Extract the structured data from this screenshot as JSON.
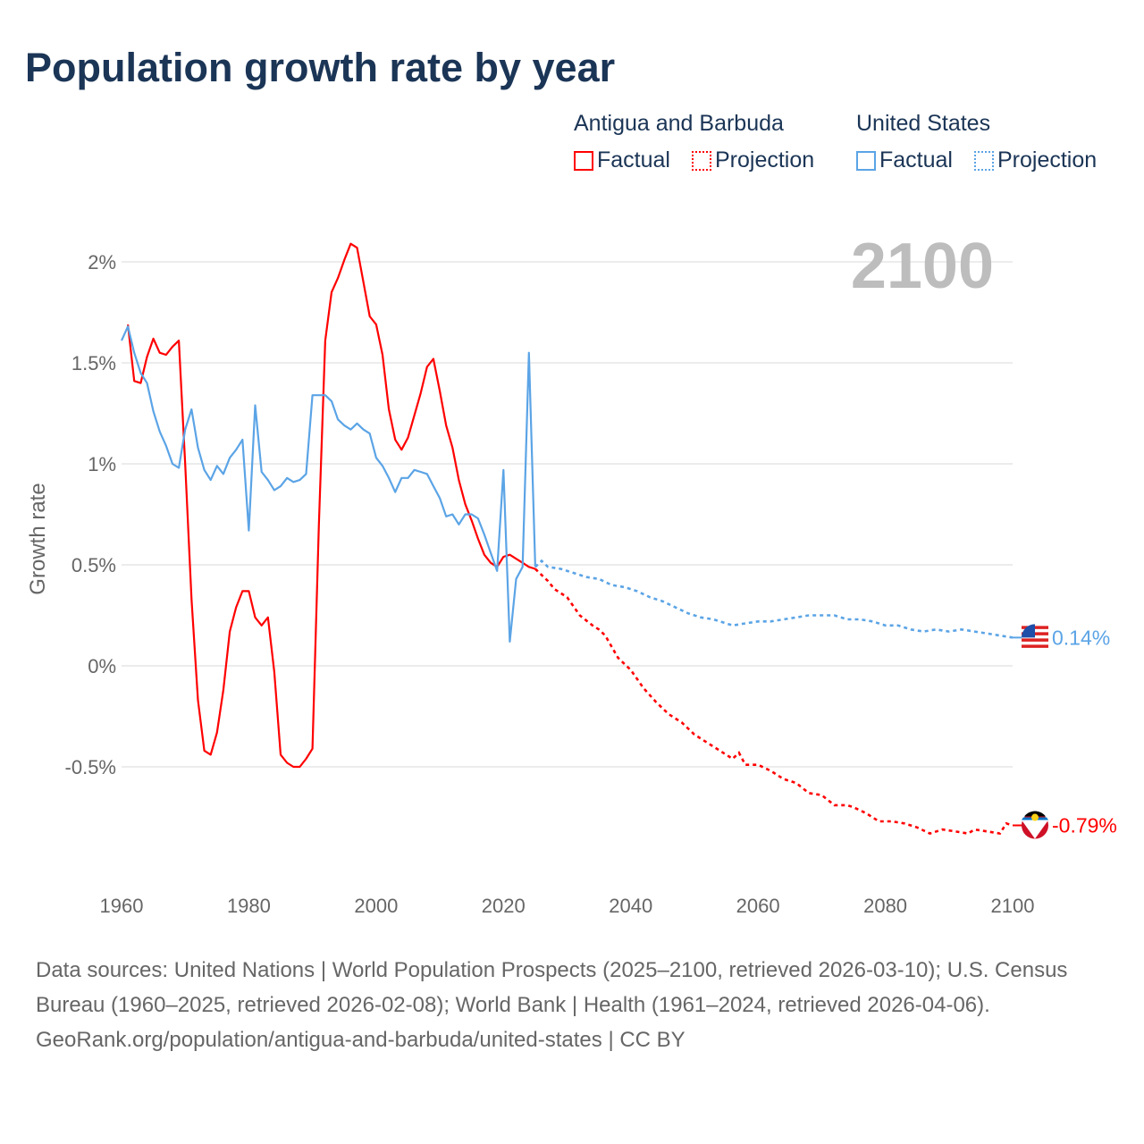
{
  "title": "Population growth rate by year",
  "legend": {
    "groups": [
      {
        "name": "Antigua and Barbuda",
        "color": "#ff0000",
        "factual": "Factual",
        "projection": "Projection"
      },
      {
        "name": "United States",
        "color": "#5ba4e6",
        "factual": "Factual",
        "projection": "Projection"
      }
    ]
  },
  "footer": {
    "sources": "Data sources: United Nations | World Population Prospects (2025–2100, retrieved 2026-03-10); U.S. Census Bureau (1960–2025, retrieved 2026-02-08); World Bank | Health (1961–2024, retrieved 2026-04-06).",
    "credit": "GeoRank.org/population/antigua-and-barbuda/united-states | CC BY"
  },
  "chart_data": {
    "type": "line",
    "year_label": "2100",
    "ylabel": "Growth rate",
    "xlim": [
      1960,
      2100
    ],
    "ylim": [
      -0.95,
      2.25
    ],
    "xticks": [
      1960,
      1980,
      2000,
      2020,
      2040,
      2060,
      2080,
      2100
    ],
    "yticks": [
      {
        "v": 2,
        "label": "2%"
      },
      {
        "v": 1.5,
        "label": "1.5%"
      },
      {
        "v": 1,
        "label": "1%"
      },
      {
        "v": 0.5,
        "label": "0.5%"
      },
      {
        "v": 0,
        "label": "0%"
      },
      {
        "v": -0.5,
        "label": "-0.5%"
      }
    ],
    "grid": true,
    "series": [
      {
        "name": "Antigua and Barbuda",
        "color": "#ff0000",
        "end_label": "-0.79%",
        "flag": "antigua-flag",
        "factual": {
          "x": [
            1961,
            1962,
            1963,
            1964,
            1965,
            1966,
            1967,
            1968,
            1969,
            1970,
            1971,
            1972,
            1973,
            1974,
            1975,
            1976,
            1977,
            1978,
            1979,
            1980,
            1981,
            1982,
            1983,
            1984,
            1985,
            1986,
            1987,
            1988,
            1989,
            1990,
            1991,
            1992,
            1993,
            1994,
            1995,
            1996,
            1997,
            1998,
            1999,
            2000,
            2001,
            2002,
            2003,
            2004,
            2005,
            2006,
            2007,
            2008,
            2009,
            2010,
            2011,
            2012,
            2013,
            2014,
            2015,
            2016,
            2017,
            2018,
            2019,
            2020,
            2021,
            2022,
            2023,
            2024,
            2025
          ],
          "y": [
            1.69,
            1.41,
            1.4,
            1.53,
            1.62,
            1.55,
            1.54,
            1.58,
            1.61,
            1.0,
            0.33,
            -0.17,
            -0.42,
            -0.44,
            -0.33,
            -0.12,
            0.17,
            0.29,
            0.37,
            0.37,
            0.24,
            0.2,
            0.24,
            -0.03,
            -0.44,
            -0.48,
            -0.5,
            -0.5,
            -0.46,
            -0.41,
            0.7,
            1.61,
            1.85,
            1.92,
            2.01,
            2.09,
            2.07,
            1.9,
            1.73,
            1.69,
            1.54,
            1.27,
            1.12,
            1.07,
            1.13,
            1.24,
            1.35,
            1.48,
            1.52,
            1.36,
            1.19,
            1.08,
            0.92,
            0.8,
            0.72,
            0.63,
            0.55,
            0.51,
            0.49,
            0.54,
            0.55,
            0.53,
            0.51,
            0.49,
            0.48
          ]
        },
        "projection": {
          "x": [
            2025,
            2027,
            2028,
            2030,
            2032,
            2034,
            2035,
            2036,
            2038,
            2040,
            2042,
            2044,
            2046,
            2048,
            2050,
            2052,
            2054,
            2056,
            2057,
            2058,
            2060,
            2062,
            2064,
            2066,
            2068,
            2070,
            2072,
            2074,
            2075,
            2077,
            2079,
            2081,
            2083,
            2085,
            2087,
            2089,
            2091,
            2093,
            2094,
            2096,
            2098,
            2099,
            2100
          ],
          "y": [
            0.48,
            0.42,
            0.38,
            0.34,
            0.25,
            0.2,
            0.18,
            0.15,
            0.04,
            -0.02,
            -0.11,
            -0.18,
            -0.24,
            -0.28,
            -0.34,
            -0.38,
            -0.42,
            -0.46,
            -0.43,
            -0.49,
            -0.49,
            -0.52,
            -0.56,
            -0.58,
            -0.63,
            -0.64,
            -0.69,
            -0.69,
            -0.7,
            -0.73,
            -0.77,
            -0.77,
            -0.78,
            -0.8,
            -0.83,
            -0.81,
            -0.82,
            -0.83,
            -0.81,
            -0.82,
            -0.83,
            -0.78,
            -0.79
          ]
        }
      },
      {
        "name": "United States",
        "color": "#5ba4e6",
        "end_label": "0.14%",
        "flag": "us-flag",
        "factual": {
          "x": [
            1960,
            1961,
            1962,
            1963,
            1964,
            1965,
            1966,
            1967,
            1968,
            1969,
            1970,
            1971,
            1972,
            1973,
            1974,
            1975,
            1976,
            1977,
            1978,
            1979,
            1980,
            1981,
            1982,
            1983,
            1984,
            1985,
            1986,
            1987,
            1988,
            1989,
            1990,
            1991,
            1992,
            1993,
            1994,
            1995,
            1996,
            1997,
            1998,
            1999,
            2000,
            2001,
            2002,
            2003,
            2004,
            2005,
            2006,
            2007,
            2008,
            2009,
            2010,
            2011,
            2012,
            2013,
            2014,
            2015,
            2016,
            2017,
            2018,
            2019,
            2020,
            2021,
            2022,
            2023,
            2024,
            2025
          ],
          "y": [
            1.61,
            1.68,
            1.55,
            1.45,
            1.4,
            1.26,
            1.16,
            1.09,
            1.0,
            0.98,
            1.17,
            1.27,
            1.08,
            0.97,
            0.92,
            0.99,
            0.95,
            1.03,
            1.07,
            1.12,
            0.67,
            1.29,
            0.96,
            0.92,
            0.87,
            0.89,
            0.93,
            0.91,
            0.92,
            0.95,
            1.34,
            1.34,
            1.34,
            1.31,
            1.22,
            1.19,
            1.17,
            1.2,
            1.17,
            1.15,
            1.03,
            0.99,
            0.93,
            0.86,
            0.93,
            0.93,
            0.97,
            0.96,
            0.95,
            0.89,
            0.83,
            0.74,
            0.75,
            0.7,
            0.75,
            0.75,
            0.73,
            0.65,
            0.56,
            0.47,
            0.97,
            0.12,
            0.43,
            0.49,
            1.55,
            0.49
          ]
        },
        "projection": {
          "x": [
            2025,
            2026,
            2027,
            2029,
            2031,
            2033,
            2035,
            2037,
            2039,
            2041,
            2043,
            2045,
            2047,
            2049,
            2051,
            2053,
            2055,
            2056,
            2058,
            2060,
            2062,
            2064,
            2066,
            2068,
            2070,
            2072,
            2074,
            2076,
            2078,
            2080,
            2082,
            2084,
            2086,
            2088,
            2090,
            2092,
            2094,
            2096,
            2098,
            2100
          ],
          "y": [
            0.49,
            0.52,
            0.49,
            0.48,
            0.46,
            0.44,
            0.43,
            0.4,
            0.39,
            0.37,
            0.34,
            0.32,
            0.29,
            0.26,
            0.24,
            0.23,
            0.21,
            0.2,
            0.21,
            0.22,
            0.22,
            0.23,
            0.24,
            0.25,
            0.25,
            0.25,
            0.23,
            0.23,
            0.22,
            0.2,
            0.2,
            0.18,
            0.17,
            0.18,
            0.17,
            0.18,
            0.17,
            0.16,
            0.15,
            0.14
          ]
        }
      }
    ]
  }
}
